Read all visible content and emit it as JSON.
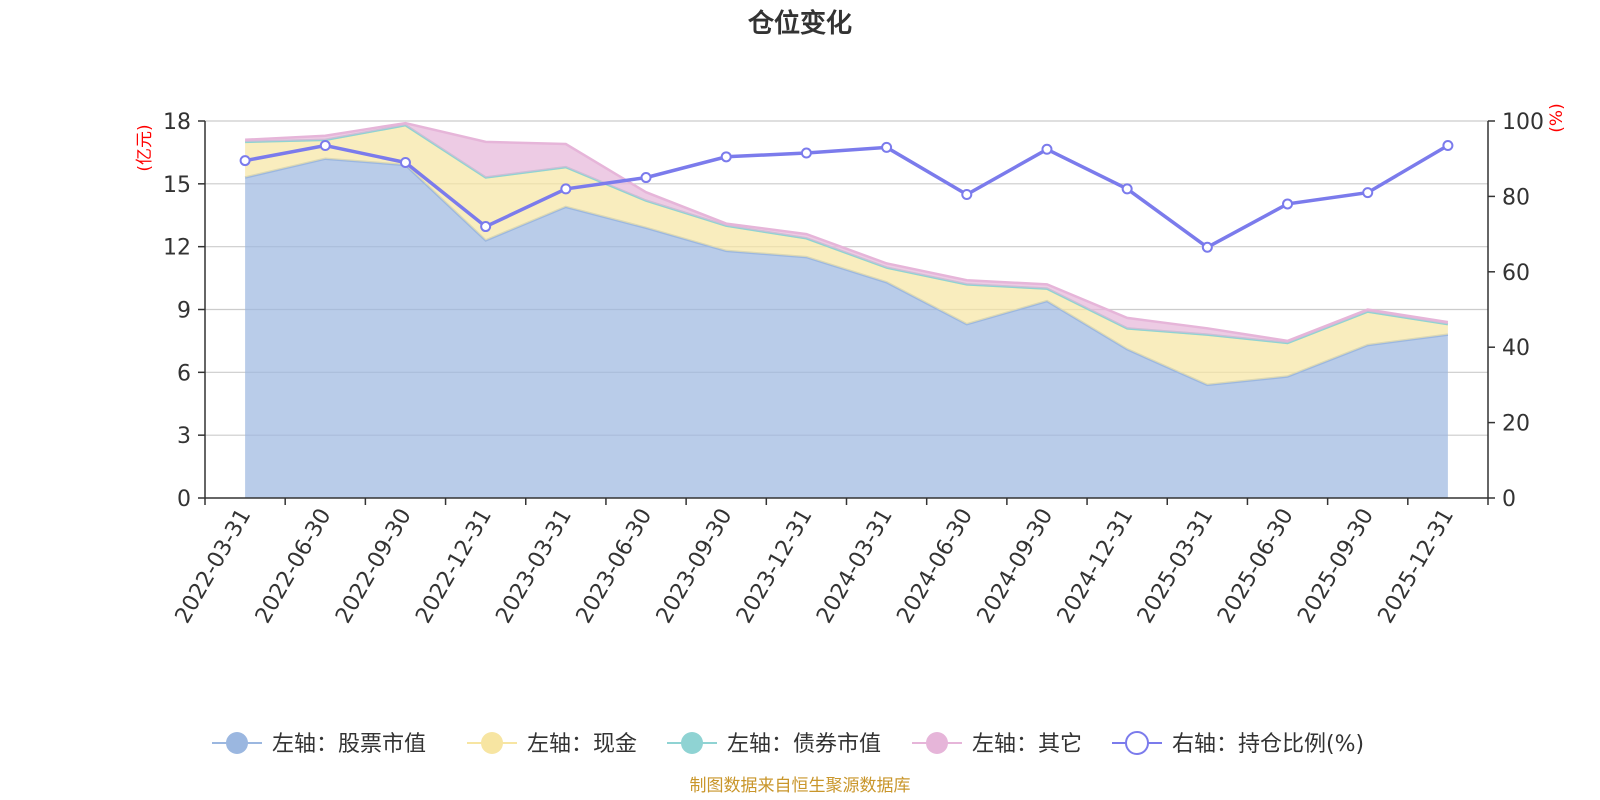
{
  "chart_data": {
    "type": "area",
    "title": "仓位变化",
    "left_axis": {
      "unit_label": "(亿元)",
      "ylim": [
        0,
        18
      ],
      "ticks": [
        0,
        3,
        6,
        9,
        12,
        15,
        18
      ]
    },
    "right_axis": {
      "unit_label": "(%)",
      "ylim": [
        0,
        100
      ],
      "ticks": [
        0,
        20,
        40,
        60,
        80,
        100
      ]
    },
    "categories": [
      "2022-03-31",
      "2022-06-30",
      "2022-09-30",
      "2022-12-31",
      "2023-03-31",
      "2023-06-30",
      "2023-09-30",
      "2023-12-31",
      "2024-03-31",
      "2024-06-30",
      "2024-09-30",
      "2024-12-31",
      "2025-03-31",
      "2025-06-30",
      "2025-09-30",
      "2025-12-31"
    ],
    "series": [
      {
        "name": "左轴：股票市值",
        "axis": "left",
        "kind": "area",
        "color": "#9bb7e0",
        "values": [
          15.3,
          16.2,
          15.9,
          12.3,
          13.9,
          12.9,
          11.8,
          11.5,
          10.3,
          8.3,
          9.4,
          7.1,
          5.4,
          5.8,
          7.3,
          7.8
        ]
      },
      {
        "name": "左轴：现金",
        "axis": "left",
        "kind": "area",
        "color": "#f7e5a2",
        "values": [
          1.7,
          0.9,
          1.9,
          3.0,
          1.9,
          1.3,
          1.2,
          0.9,
          0.7,
          1.9,
          0.6,
          1.0,
          2.4,
          1.6,
          1.6,
          0.5
        ]
      },
      {
        "name": "左轴：债券市值",
        "axis": "left",
        "kind": "area",
        "color": "#8fd3d3",
        "values": [
          0,
          0,
          0,
          0,
          0,
          0,
          0,
          0,
          0,
          0,
          0,
          0,
          0,
          0,
          0,
          0
        ]
      },
      {
        "name": "左轴：其它",
        "axis": "left",
        "kind": "area",
        "color": "#e6b5d9",
        "values": [
          0.1,
          0.2,
          0.1,
          1.7,
          1.1,
          0.4,
          0.1,
          0.2,
          0.2,
          0.2,
          0.2,
          0.5,
          0.3,
          0.1,
          0.1,
          0.1
        ]
      },
      {
        "name": "右轴：持仓比例(%)",
        "axis": "right",
        "kind": "line",
        "color": "#7b7bec",
        "values": [
          89.5,
          93.5,
          89.0,
          72.0,
          82.0,
          85.0,
          90.5,
          91.5,
          93.0,
          80.5,
          92.5,
          82.0,
          66.5,
          78.0,
          81.0,
          93.5
        ]
      }
    ],
    "source_note": "制图数据来自恒生聚源数据库"
  }
}
